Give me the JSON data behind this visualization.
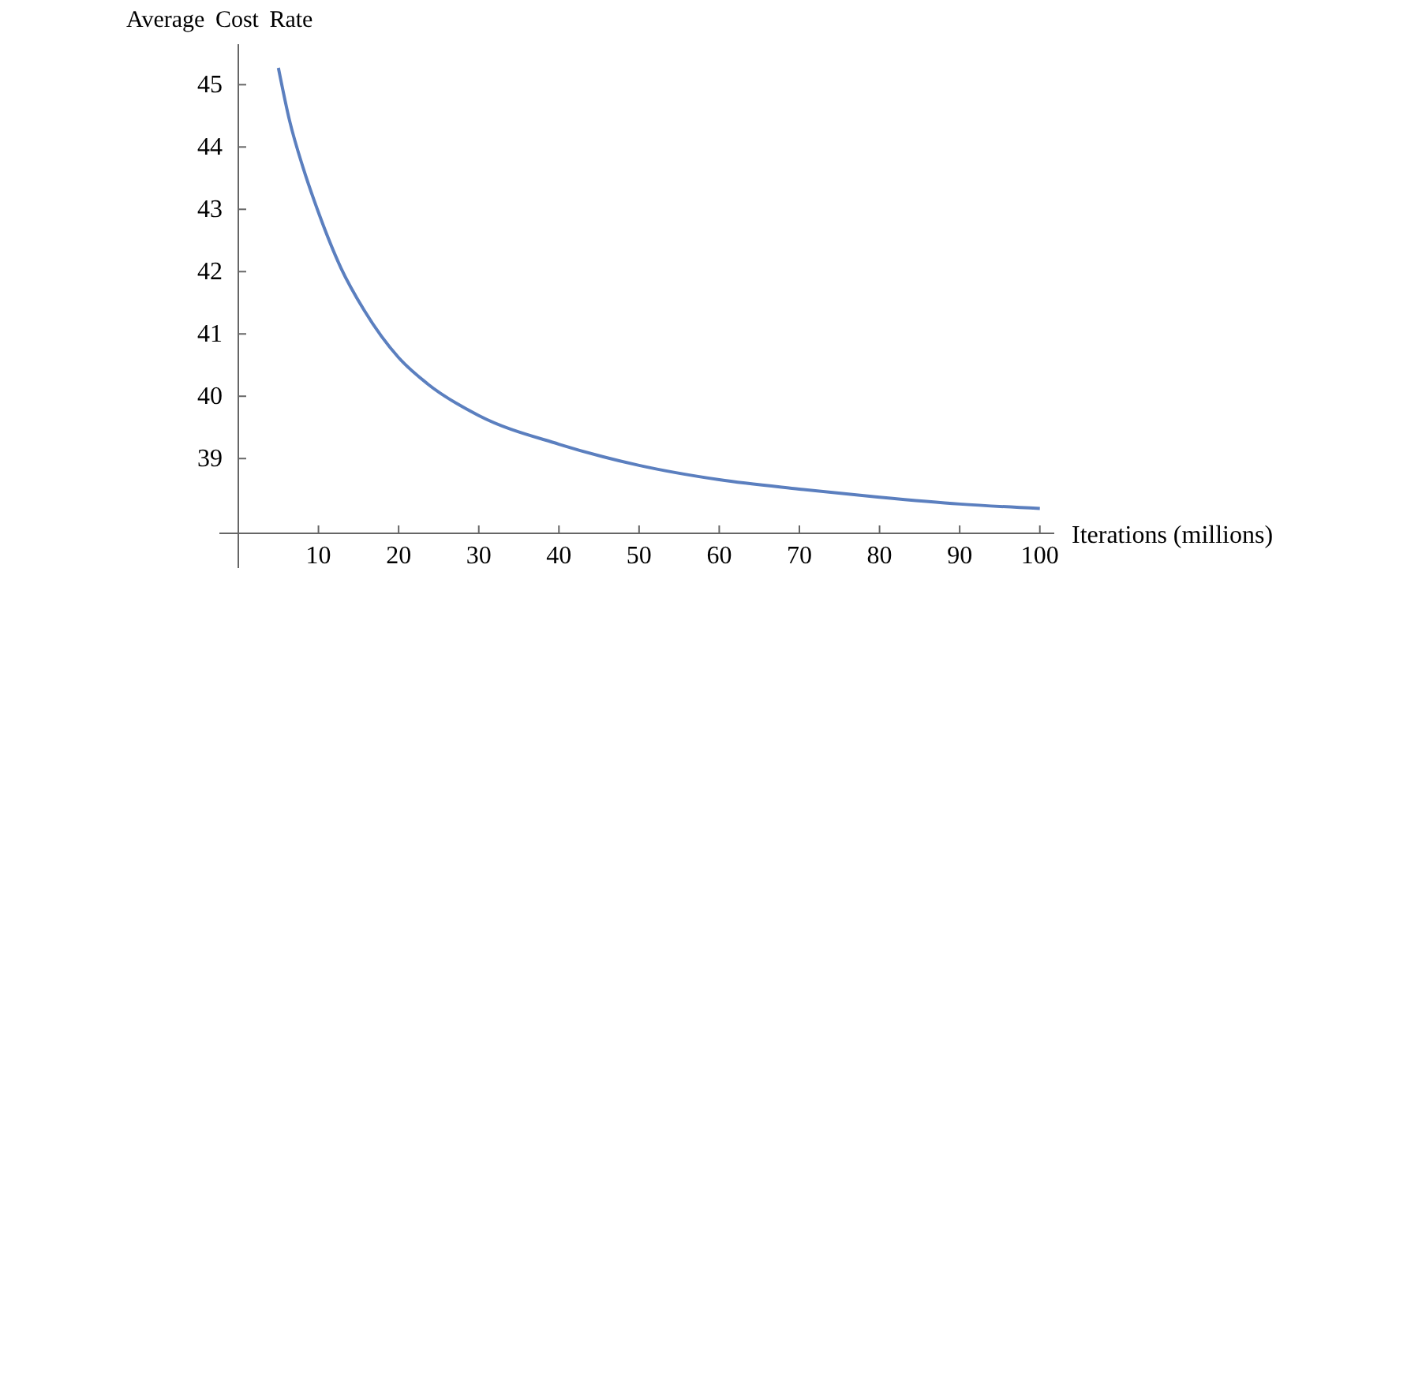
{
  "chart_data": {
    "type": "line",
    "ylabel": "Average Cost Rate",
    "xlabel": "Iterations (millions)",
    "x": [
      5,
      6.4,
      8.1,
      10,
      12.8,
      15.7,
      20,
      23.6,
      30,
      40,
      50,
      60,
      70,
      80,
      90,
      100
    ],
    "series": [
      {
        "color": "#5b7fbf",
        "values": [
          45.27,
          44.42,
          43.66,
          42.95,
          42.06,
          41.38,
          40.62,
          40.2,
          39.69,
          39.23,
          38.89,
          38.66,
          38.51,
          38.38,
          38.27,
          38.2
        ]
      }
    ],
    "xlim": [
      0,
      101.8
    ],
    "ylim": [
      37.8,
      45.65
    ],
    "xticks": [
      10,
      20,
      30,
      40,
      50,
      60,
      70,
      80,
      90,
      100
    ],
    "yticks": [
      39,
      40,
      41,
      42,
      43,
      44,
      45
    ],
    "grid": false,
    "marker": "none",
    "line_style": "solid"
  }
}
